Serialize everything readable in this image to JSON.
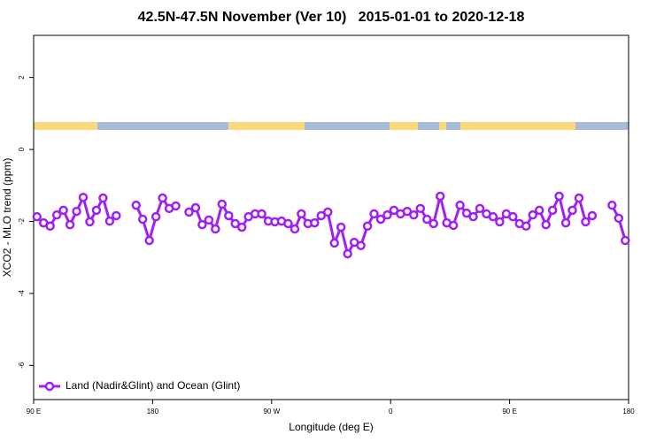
{
  "chart_data": {
    "type": "line",
    "title": "42.5N-47.5N November (Ver 10)   2015-01-01 to 2020-12-18",
    "xlabel": "Longitude (deg E)",
    "ylabel": "XCO2 - MLO trend (ppm)",
    "x": [
      92.5,
      97.5,
      102.5,
      107.5,
      112.5,
      117.5,
      122.5,
      127.5,
      132.5,
      137.5,
      142.5,
      147.5,
      152.5,
      157.5,
      162.5,
      167.5,
      172.5,
      177.5,
      182.5,
      187.5,
      192.5,
      197.5,
      202.5,
      207.5,
      212.5,
      217.5,
      222.5,
      227.5,
      232.5,
      237.5,
      242.5,
      247.5,
      252.5,
      257.5,
      262.5,
      267.5,
      272.5,
      277.5,
      282.5,
      287.5,
      292.5,
      297.5,
      302.5,
      307.5,
      312.5,
      317.5,
      322.5,
      327.5,
      332.5,
      337.5,
      342.5,
      347.5,
      352.5,
      357.5,
      362.5,
      367.5,
      372.5,
      377.5,
      382.5,
      387.5,
      392.5,
      397.5,
      402.5,
      407.5,
      412.5,
      417.5,
      422.5,
      427.5,
      432.5,
      437.5,
      442.5,
      447.5,
      452.5,
      457.5,
      462.5,
      467.5,
      472.5,
      477.5,
      482.5,
      487.5,
      492.5,
      497.5,
      502.5,
      507.5,
      512.5,
      517.5,
      522.5,
      527.5,
      532.5,
      537.5
    ],
    "series": [
      {
        "name": "Land (Nadir&Glint) and Ocean (Glint)",
        "color": "#a020f0",
        "values": [
          -1.87,
          -2.04,
          -2.13,
          -1.82,
          -1.69,
          -2.09,
          -1.72,
          -1.33,
          -2.01,
          -1.69,
          -1.35,
          -1.99,
          -1.84,
          null,
          null,
          -1.55,
          -1.94,
          -2.53,
          -1.87,
          -1.35,
          -1.64,
          -1.57,
          null,
          -1.74,
          -1.62,
          -2.09,
          -1.96,
          -2.21,
          -1.52,
          -1.84,
          -2.06,
          -2.16,
          -1.87,
          -1.79,
          -1.79,
          -1.99,
          -2.01,
          -1.99,
          -2.06,
          -2.21,
          -1.79,
          -2.06,
          -2.04,
          -1.84,
          -1.74,
          -2.6,
          -2.16,
          -2.9,
          -2.58,
          -2.67,
          -2.13,
          -1.79,
          -1.94,
          -1.82,
          -1.69,
          -1.79,
          -1.72,
          -1.82,
          -1.64,
          -1.94,
          -2.06,
          -1.3,
          -2.04,
          -2.11,
          -1.55,
          -1.77,
          -1.87,
          -1.64,
          -1.79,
          -1.87,
          -2.01,
          -1.79,
          -1.87,
          -2.06,
          -2.13,
          -1.82,
          -1.69,
          -2.09,
          -1.69,
          -1.3,
          -2.04,
          -1.69,
          -1.35,
          -2.01,
          -1.84,
          null,
          null,
          -1.55,
          -1.91,
          -2.53
        ]
      }
    ],
    "xlim": [
      90,
      540
    ],
    "ylim": [
      -6.95,
      3.17
    ],
    "xticks": [
      {
        "value": 90,
        "label": "90 E"
      },
      180,
      {
        "value": 270,
        "label": "90 W"
      },
      {
        "value": 360,
        "label": "0"
      },
      {
        "value": 450,
        "label": "90 E"
      },
      {
        "value": 540,
        "label": "180"
      }
    ],
    "yticks": [
      -6,
      -4,
      -2,
      0,
      2
    ],
    "legend": "bottom left"
  }
}
